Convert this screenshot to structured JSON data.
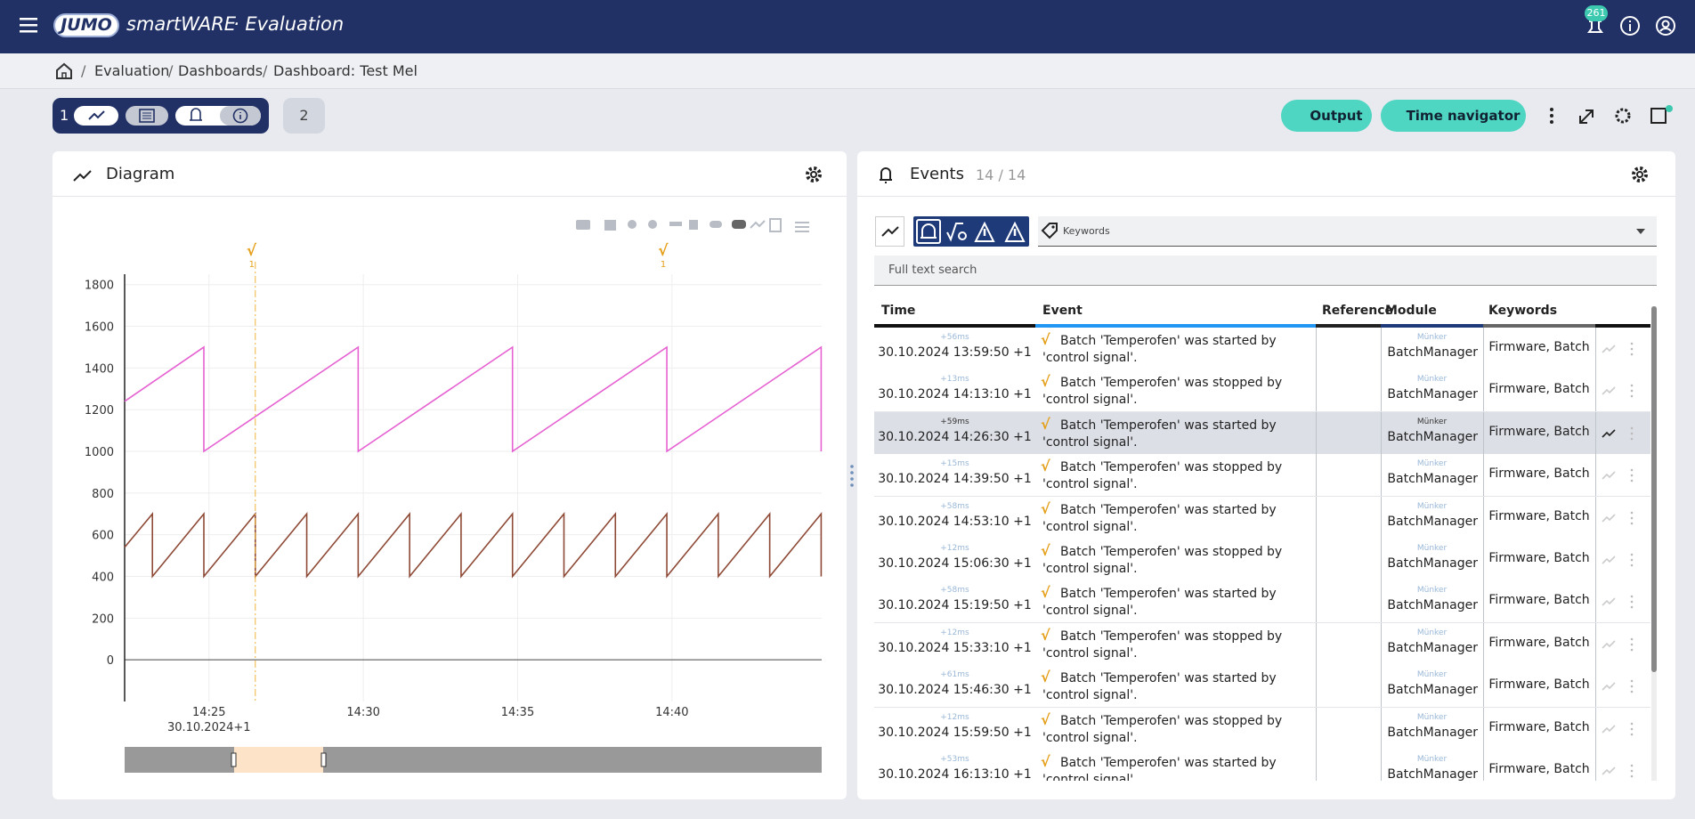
{
  "header": {
    "logo": "JUMO",
    "app": "smartWARE",
    "app_suffix": "· Evaluation",
    "notifications": "261"
  },
  "breadcrumb": [
    "Evaluation",
    "Dashboards",
    "Dashboard: Test Mel"
  ],
  "tabs": [
    "1",
    "2"
  ],
  "actions": [
    "Output",
    "Time navigator"
  ],
  "diagram": {
    "title": "Diagram"
  },
  "events": {
    "title": "Events",
    "count": "14 / 14",
    "keywords_placeholder": "Keywords",
    "search_placeholder": "Full text search",
    "columns": [
      "Time",
      "Event",
      "Reference",
      "Module",
      "Keywords"
    ],
    "selected_row": 2,
    "rows": [
      {
        "delta": "+56ms",
        "time": "30.10.2024 13:59:50 +1",
        "event": "Batch 'Temperofen' was started by 'control signal'.",
        "module_user": "Münker",
        "module": "BatchManager",
        "keywords": "Firmware, Batch"
      },
      {
        "delta": "+13ms",
        "time": "30.10.2024 14:13:10 +1",
        "event": "Batch 'Temperofen' was stopped by 'control signal'.",
        "module_user": "Münker",
        "module": "BatchManager",
        "keywords": "Firmware, Batch"
      },
      {
        "delta": "+59ms",
        "time": "30.10.2024 14:26:30 +1",
        "event": "Batch 'Temperofen' was started by 'control signal'.",
        "module_user": "Münker",
        "module": "BatchManager",
        "keywords": "Firmware, Batch"
      },
      {
        "delta": "+15ms",
        "time": "30.10.2024 14:39:50 +1",
        "event": "Batch 'Temperofen' was stopped by 'control signal'.",
        "module_user": "Münker",
        "module": "BatchManager",
        "keywords": "Firmware, Batch"
      },
      {
        "delta": "+58ms",
        "time": "30.10.2024 14:53:10 +1",
        "event": "Batch 'Temperofen' was started by 'control signal'.",
        "module_user": "Münker",
        "module": "BatchManager",
        "keywords": "Firmware, Batch"
      },
      {
        "delta": "+12ms",
        "time": "30.10.2024 15:06:30 +1",
        "event": "Batch 'Temperofen' was stopped by 'control signal'.",
        "module_user": "Münker",
        "module": "BatchManager",
        "keywords": "Firmware, Batch"
      },
      {
        "delta": "+58ms",
        "time": "30.10.2024 15:19:50 +1",
        "event": "Batch 'Temperofen' was started by 'control signal'.",
        "module_user": "Münker",
        "module": "BatchManager",
        "keywords": "Firmware, Batch"
      },
      {
        "delta": "+12ms",
        "time": "30.10.2024 15:33:10 +1",
        "event": "Batch 'Temperofen' was stopped by 'control signal'.",
        "module_user": "Münker",
        "module": "BatchManager",
        "keywords": "Firmware, Batch"
      },
      {
        "delta": "+61ms",
        "time": "30.10.2024 15:46:30 +1",
        "event": "Batch 'Temperofen' was started by 'control signal'.",
        "module_user": "Münker",
        "module": "BatchManager",
        "keywords": "Firmware, Batch"
      },
      {
        "delta": "+12ms",
        "time": "30.10.2024 15:59:50 +1",
        "event": "Batch 'Temperofen' was stopped by 'control signal'.",
        "module_user": "Münker",
        "module": "BatchManager",
        "keywords": "Firmware, Batch"
      },
      {
        "delta": "+53ms",
        "time": "30.10.2024 16:13:10 +1",
        "event": "Batch 'Temperofen' was started by 'control signal'.",
        "module_user": "Münker",
        "module": "BatchManager",
        "keywords": "Firmware, Batch"
      }
    ]
  },
  "chart_data": {
    "type": "line",
    "xlim": [
      "14:22:16",
      "14:44:51"
    ],
    "xticks": [
      {
        "value": "14:25:00",
        "label": "14:25"
      },
      {
        "value": "14:30:00",
        "label": "14:30"
      },
      {
        "value": "14:35:00",
        "label": "14:35"
      },
      {
        "value": "14:40:00",
        "label": "14:40"
      }
    ],
    "x_date_label": "30.10.2024+1",
    "ylim": [
      -200,
      1850
    ],
    "yticks": [
      0,
      200,
      400,
      600,
      800,
      1000,
      1200,
      1400,
      1600,
      1800
    ],
    "grid": true,
    "markers": [
      {
        "x": "14:26:30",
        "label": "1",
        "highlighted": true
      },
      {
        "x": "14:39:50",
        "label": "1"
      }
    ],
    "series": [
      {
        "color": "#e661d2",
        "x": [
          "14:22:16",
          "14:24:50",
          "14:24:50",
          "14:29:50",
          "14:29:50",
          "14:34:50",
          "14:34:50",
          "14:39:50",
          "14:39:50",
          "14:44:50",
          "14:44:50"
        ],
        "values": [
          1240,
          1500,
          1000,
          1500,
          1000,
          1500,
          1000,
          1500,
          1000,
          1500,
          1000
        ]
      },
      {
        "color": "#8e4a36",
        "x": [
          "14:22:16",
          "14:23:10",
          "14:23:10",
          "14:24:50",
          "14:24:50",
          "14:26:30",
          "14:26:30",
          "14:28:10",
          "14:28:10",
          "14:29:50",
          "14:29:50",
          "14:31:30",
          "14:31:30",
          "14:33:10",
          "14:33:10",
          "14:34:50",
          "14:34:50",
          "14:36:30",
          "14:36:30",
          "14:38:10",
          "14:38:10",
          "14:39:50",
          "14:39:50",
          "14:41:30",
          "14:41:30",
          "14:43:10",
          "14:43:10",
          "14:44:50",
          "14:44:50"
        ],
        "values": [
          540,
          700,
          400,
          700,
          400,
          700,
          400,
          700,
          400,
          700,
          400,
          700,
          400,
          700,
          400,
          700,
          400,
          700,
          400,
          700,
          400,
          700,
          400,
          700,
          400,
          700,
          400,
          700,
          400
        ]
      }
    ]
  }
}
